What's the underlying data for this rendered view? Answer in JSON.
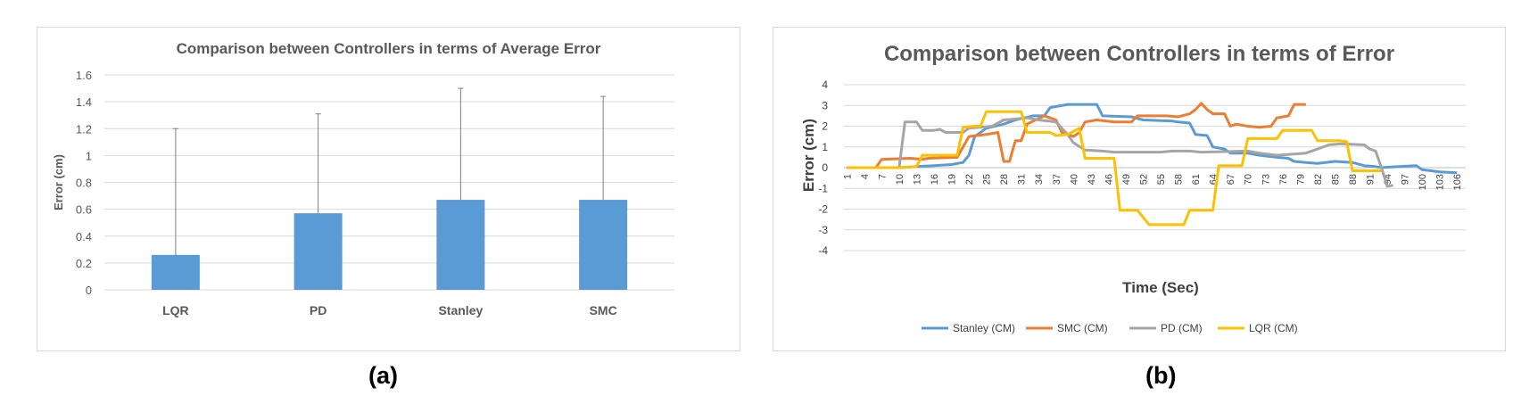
{
  "captions": {
    "a": "(a)",
    "b": "(b)"
  },
  "chart_data": [
    {
      "type": "bar",
      "title": "Comparison between Controllers in terms of Average Error",
      "xlabel": "",
      "ylabel": "Error (cm)",
      "categories": [
        "LQR",
        "PD",
        "Stanley",
        "SMC"
      ],
      "values": [
        0.26,
        0.57,
        0.67,
        0.67
      ],
      "error_upper": [
        1.2,
        1.31,
        1.5,
        1.44
      ],
      "ylim": [
        0,
        1.6
      ],
      "yticks": [
        "0",
        "0.2",
        "0.4",
        "0.6",
        "0.8",
        "1",
        "1.2",
        "1.4",
        "1.6"
      ],
      "grid": true,
      "bar_color": "#5b9bd5"
    },
    {
      "type": "line",
      "title": "Comparison between Controllers in terms of Error",
      "xlabel": "Time (Sec)",
      "ylabel": "Error (cm)",
      "ylim": [
        -4,
        4
      ],
      "yticks": [
        "4",
        "3",
        "2",
        "1",
        "0",
        "-1",
        "-2",
        "-3",
        "-4"
      ],
      "xticks": [
        "1",
        "4",
        "7",
        "10",
        "13",
        "16",
        "19",
        "22",
        "25",
        "28",
        "31",
        "34",
        "37",
        "40",
        "43",
        "46",
        "49",
        "52",
        "55",
        "58",
        "61",
        "64",
        "67",
        "70",
        "73",
        "76",
        "79",
        "82",
        "85",
        "88",
        "91",
        "94",
        "97",
        "100",
        "103",
        "106"
      ],
      "x_max": 107,
      "grid": true,
      "legend_position": "bottom",
      "series": [
        {
          "name": "Stanley (CM)",
          "color": "#5b9bd5",
          "points": [
            [
              1,
              0
            ],
            [
              10,
              0
            ],
            [
              13,
              0.05
            ],
            [
              16,
              0.1
            ],
            [
              19,
              0.15
            ],
            [
              21,
              0.25
            ],
            [
              22,
              0.6
            ],
            [
              23,
              1.5
            ],
            [
              25,
              1.9
            ],
            [
              28,
              2.1
            ],
            [
              30,
              2.3
            ],
            [
              33,
              2.5
            ],
            [
              35,
              2.5
            ],
            [
              36,
              2.9
            ],
            [
              39,
              3.05
            ],
            [
              44,
              3.05
            ],
            [
              45,
              2.5
            ],
            [
              50,
              2.45
            ],
            [
              52,
              2.3
            ],
            [
              57,
              2.25
            ],
            [
              58,
              2.2
            ],
            [
              60,
              2.15
            ],
            [
              61,
              1.6
            ],
            [
              63,
              1.55
            ],
            [
              64,
              1.0
            ],
            [
              66,
              0.9
            ],
            [
              67,
              0.7
            ],
            [
              70,
              0.7
            ],
            [
              72,
              0.6
            ],
            [
              75,
              0.5
            ],
            [
              77,
              0.45
            ],
            [
              78,
              0.3
            ],
            [
              80,
              0.25
            ],
            [
              82,
              0.2
            ],
            [
              85,
              0.3
            ],
            [
              88,
              0.25
            ],
            [
              90,
              0.1
            ],
            [
              92,
              0.05
            ],
            [
              93,
              0
            ],
            [
              94,
              0.02
            ],
            [
              96,
              0.05
            ],
            [
              99,
              0.1
            ],
            [
              100,
              -0.1
            ],
            [
              103,
              -0.2
            ],
            [
              106,
              -0.25
            ]
          ]
        },
        {
          "name": "SMC (CM)",
          "color": "#ed7d31",
          "points": [
            [
              1,
              0
            ],
            [
              6,
              0
            ],
            [
              7,
              0.4
            ],
            [
              12,
              0.45
            ],
            [
              14,
              0.4
            ],
            [
              15,
              0.45
            ],
            [
              20,
              0.5
            ],
            [
              22,
              1.5
            ],
            [
              25,
              1.6
            ],
            [
              27,
              1.7
            ],
            [
              28,
              0.3
            ],
            [
              29,
              0.3
            ],
            [
              30,
              1.3
            ],
            [
              31,
              1.3
            ],
            [
              32,
              2.1
            ],
            [
              35,
              2.5
            ],
            [
              37,
              2.3
            ],
            [
              38,
              1.7
            ],
            [
              40,
              1.5
            ],
            [
              41,
              1.7
            ],
            [
              42,
              2.2
            ],
            [
              44,
              2.3
            ],
            [
              47,
              2.2
            ],
            [
              50,
              2.2
            ],
            [
              51,
              2.5
            ],
            [
              53,
              2.5
            ],
            [
              56,
              2.5
            ],
            [
              58,
              2.45
            ],
            [
              60,
              2.6
            ],
            [
              61,
              2.8
            ],
            [
              62,
              3.1
            ],
            [
              63,
              2.8
            ],
            [
              64,
              2.6
            ],
            [
              66,
              2.6
            ],
            [
              67,
              2.0
            ],
            [
              68,
              2.1
            ],
            [
              70,
              2.0
            ],
            [
              72,
              1.95
            ],
            [
              74,
              2.0
            ],
            [
              75,
              2.4
            ],
            [
              77,
              2.5
            ],
            [
              78,
              3.05
            ],
            [
              80,
              3.05
            ]
          ]
        },
        {
          "name": "PD (CM)",
          "color": "#a5a5a5",
          "points": [
            [
              1,
              0
            ],
            [
              10,
              0
            ],
            [
              11,
              2.2
            ],
            [
              13,
              2.2
            ],
            [
              14,
              1.8
            ],
            [
              16,
              1.8
            ],
            [
              17,
              1.85
            ],
            [
              18,
              1.7
            ],
            [
              21,
              1.7
            ],
            [
              22,
              1.9
            ],
            [
              26,
              2.0
            ],
            [
              28,
              2.3
            ],
            [
              30,
              2.35
            ],
            [
              32,
              2.4
            ],
            [
              34,
              2.3
            ],
            [
              37,
              2.2
            ],
            [
              38,
              1.9
            ],
            [
              39,
              1.6
            ],
            [
              40,
              1.2
            ],
            [
              42,
              0.85
            ],
            [
              45,
              0.8
            ],
            [
              47,
              0.75
            ],
            [
              55,
              0.75
            ],
            [
              57,
              0.8
            ],
            [
              60,
              0.8
            ],
            [
              62,
              0.75
            ],
            [
              70,
              0.8
            ],
            [
              72,
              0.7
            ],
            [
              75,
              0.6
            ],
            [
              80,
              0.7
            ],
            [
              82,
              0.9
            ],
            [
              84,
              1.1
            ],
            [
              86,
              1.15
            ],
            [
              90,
              1.1
            ],
            [
              91,
              0.9
            ],
            [
              92,
              0.8
            ],
            [
              93,
              0
            ],
            [
              94,
              -0.9
            ],
            [
              95,
              -0.85
            ]
          ]
        },
        {
          "name": "LQR (CM)",
          "color": "#ffc000",
          "points": [
            [
              1,
              0
            ],
            [
              10,
              0
            ],
            [
              13,
              0.05
            ],
            [
              14,
              0.6
            ],
            [
              17,
              0.6
            ],
            [
              20,
              0.6
            ],
            [
              21,
              1.95
            ],
            [
              23,
              2.0
            ],
            [
              24,
              2.0
            ],
            [
              25,
              2.7
            ],
            [
              31,
              2.7
            ],
            [
              32,
              1.7
            ],
            [
              36,
              1.7
            ],
            [
              37,
              1.55
            ],
            [
              39,
              1.6
            ],
            [
              41,
              1.9
            ],
            [
              42,
              0.45
            ],
            [
              47,
              0.45
            ],
            [
              48,
              -2.05
            ],
            [
              51,
              -2.05
            ],
            [
              53,
              -2.75
            ],
            [
              59,
              -2.75
            ],
            [
              60,
              -2.05
            ],
            [
              64,
              -2.05
            ],
            [
              65,
              0.1
            ],
            [
              69,
              0.1
            ],
            [
              70,
              1.4
            ],
            [
              75,
              1.4
            ],
            [
              76,
              1.8
            ],
            [
              81,
              1.8
            ],
            [
              82,
              1.3
            ],
            [
              86,
              1.3
            ],
            [
              87,
              1.25
            ],
            [
              88,
              -0.15
            ],
            [
              93,
              -0.15
            ]
          ]
        }
      ]
    }
  ]
}
